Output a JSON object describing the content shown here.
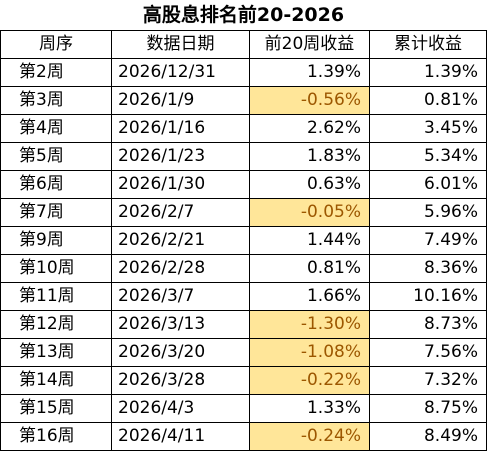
{
  "title": "高股息排名前20-2026",
  "columns": [
    "周序",
    "数据日期",
    "前20周收益",
    "累计收益"
  ],
  "rows": [
    {
      "week": "第2周",
      "date": "2026/12/31",
      "weekly": "1.39%",
      "cumulative": "1.39%",
      "negative": false
    },
    {
      "week": "第3周",
      "date": "2026/1/9",
      "weekly": "-0.56%",
      "cumulative": "0.81%",
      "negative": true
    },
    {
      "week": "第4周",
      "date": "2026/1/16",
      "weekly": "2.62%",
      "cumulative": "3.45%",
      "negative": false
    },
    {
      "week": "第5周",
      "date": "2026/1/23",
      "weekly": "1.83%",
      "cumulative": "5.34%",
      "negative": false
    },
    {
      "week": "第6周",
      "date": "2026/1/30",
      "weekly": "0.63%",
      "cumulative": "6.01%",
      "negative": false
    },
    {
      "week": "第7周",
      "date": "2026/2/7",
      "weekly": "-0.05%",
      "cumulative": "5.96%",
      "negative": true
    },
    {
      "week": "第9周",
      "date": "2026/2/21",
      "weekly": "1.44%",
      "cumulative": "7.49%",
      "negative": false
    },
    {
      "week": "第10周",
      "date": "2026/2/28",
      "weekly": "0.81%",
      "cumulative": "8.36%",
      "negative": false
    },
    {
      "week": "第11周",
      "date": "2026/3/7",
      "weekly": "1.66%",
      "cumulative": "10.16%",
      "negative": false
    },
    {
      "week": "第12周",
      "date": "2026/3/13",
      "weekly": "-1.30%",
      "cumulative": "8.73%",
      "negative": true
    },
    {
      "week": "第13周",
      "date": "2026/3/20",
      "weekly": "-1.08%",
      "cumulative": "7.56%",
      "negative": true
    },
    {
      "week": "第14周",
      "date": "2026/3/28",
      "weekly": "-0.22%",
      "cumulative": "7.32%",
      "negative": true
    },
    {
      "week": "第15周",
      "date": "2026/4/3",
      "weekly": "1.33%",
      "cumulative": "8.75%",
      "negative": false
    },
    {
      "week": "第16周",
      "date": "2026/4/11",
      "weekly": "-0.24%",
      "cumulative": "8.49%",
      "negative": true
    }
  ],
  "colors": {
    "negative_fill": "#ffe699",
    "negative_text": "#9c5700",
    "grid": "#000000"
  }
}
